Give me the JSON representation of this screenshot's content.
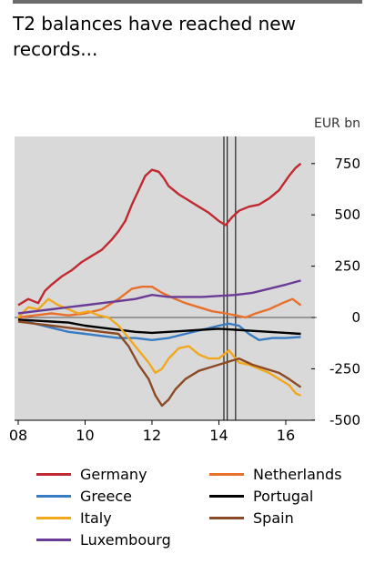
{
  "title": "T2 balances have reached new records...",
  "unit": "EUR bn",
  "chart_data": {
    "type": "line",
    "title": "T2 balances have reached new records...",
    "ylabel": "EUR bn",
    "xlabel": "",
    "xlim": [
      2008,
      2016.6
    ],
    "ylim": [
      -560,
      880
    ],
    "x_ticks": [
      2008,
      2010,
      2012,
      2014,
      2016
    ],
    "x_tick_labels": [
      "08",
      "10",
      "12",
      "14",
      "16"
    ],
    "y_ticks": [
      -500,
      -250,
      0,
      250,
      500,
      750
    ],
    "y_tick_labels": [
      "-500",
      "-250",
      "0",
      "250",
      "500",
      "750"
    ],
    "grid": false,
    "legend_position": "bottom",
    "vertical_markers": [
      2014.15,
      2014.25,
      2014.5
    ],
    "series": [
      {
        "name": "Germany",
        "color": "#c0292f",
        "points": [
          [
            2008.0,
            60
          ],
          [
            2008.3,
            90
          ],
          [
            2008.6,
            70
          ],
          [
            2008.8,
            130
          ],
          [
            2009.0,
            160
          ],
          [
            2009.3,
            200
          ],
          [
            2009.6,
            230
          ],
          [
            2009.9,
            270
          ],
          [
            2010.2,
            300
          ],
          [
            2010.5,
            330
          ],
          [
            2010.8,
            380
          ],
          [
            2011.0,
            420
          ],
          [
            2011.2,
            470
          ],
          [
            2011.4,
            550
          ],
          [
            2011.6,
            620
          ],
          [
            2011.8,
            690
          ],
          [
            2012.0,
            720
          ],
          [
            2012.2,
            710
          ],
          [
            2012.35,
            680
          ],
          [
            2012.5,
            640
          ],
          [
            2012.8,
            600
          ],
          [
            2013.1,
            570
          ],
          [
            2013.4,
            540
          ],
          [
            2013.7,
            510
          ],
          [
            2014.0,
            470
          ],
          [
            2014.2,
            450
          ],
          [
            2014.4,
            490
          ],
          [
            2014.6,
            520
          ],
          [
            2014.9,
            540
          ],
          [
            2015.2,
            550
          ],
          [
            2015.5,
            580
          ],
          [
            2015.8,
            620
          ],
          [
            2016.1,
            690
          ],
          [
            2016.3,
            730
          ],
          [
            2016.45,
            750
          ]
        ]
      },
      {
        "name": "Netherlands",
        "color": "#e8702a",
        "points": [
          [
            2008.0,
            0
          ],
          [
            2008.5,
            10
          ],
          [
            2009.0,
            20
          ],
          [
            2009.5,
            10
          ],
          [
            2010.0,
            20
          ],
          [
            2010.5,
            40
          ],
          [
            2011.0,
            90
          ],
          [
            2011.4,
            140
          ],
          [
            2011.7,
            150
          ],
          [
            2012.0,
            150
          ],
          [
            2012.3,
            120
          ],
          [
            2012.7,
            90
          ],
          [
            2013.0,
            70
          ],
          [
            2013.4,
            50
          ],
          [
            2013.8,
            30
          ],
          [
            2014.2,
            20
          ],
          [
            2014.5,
            10
          ],
          [
            2014.8,
            0
          ],
          [
            2015.1,
            20
          ],
          [
            2015.5,
            40
          ],
          [
            2015.9,
            70
          ],
          [
            2016.2,
            90
          ],
          [
            2016.45,
            60
          ]
        ]
      },
      {
        "name": "Greece",
        "color": "#3a7cc3",
        "points": [
          [
            2008.0,
            -10
          ],
          [
            2008.5,
            -30
          ],
          [
            2009.0,
            -50
          ],
          [
            2009.5,
            -70
          ],
          [
            2010.0,
            -80
          ],
          [
            2010.5,
            -90
          ],
          [
            2011.0,
            -100
          ],
          [
            2011.5,
            -100
          ],
          [
            2012.0,
            -110
          ],
          [
            2012.5,
            -100
          ],
          [
            2013.0,
            -80
          ],
          [
            2013.5,
            -60
          ],
          [
            2014.0,
            -40
          ],
          [
            2014.3,
            -30
          ],
          [
            2014.6,
            -40
          ],
          [
            2014.9,
            -80
          ],
          [
            2015.2,
            -110
          ],
          [
            2015.6,
            -100
          ],
          [
            2016.0,
            -100
          ],
          [
            2016.45,
            -95
          ]
        ]
      },
      {
        "name": "Portugal",
        "color": "#000000",
        "points": [
          [
            2008.0,
            -10
          ],
          [
            2008.5,
            -15
          ],
          [
            2009.0,
            -20
          ],
          [
            2009.5,
            -25
          ],
          [
            2010.0,
            -40
          ],
          [
            2010.5,
            -50
          ],
          [
            2011.0,
            -60
          ],
          [
            2011.5,
            -70
          ],
          [
            2012.0,
            -75
          ],
          [
            2012.5,
            -70
          ],
          [
            2013.0,
            -65
          ],
          [
            2013.5,
            -60
          ],
          [
            2014.0,
            -55
          ],
          [
            2014.5,
            -60
          ],
          [
            2015.0,
            -65
          ],
          [
            2015.5,
            -70
          ],
          [
            2016.0,
            -75
          ],
          [
            2016.45,
            -80
          ]
        ]
      },
      {
        "name": "Italy",
        "color": "#f2a81d",
        "points": [
          [
            2008.0,
            0
          ],
          [
            2008.3,
            50
          ],
          [
            2008.6,
            40
          ],
          [
            2008.9,
            90
          ],
          [
            2009.2,
            60
          ],
          [
            2009.5,
            40
          ],
          [
            2009.8,
            20
          ],
          [
            2010.1,
            30
          ],
          [
            2010.4,
            10
          ],
          [
            2010.7,
            0
          ],
          [
            2011.0,
            -40
          ],
          [
            2011.3,
            -100
          ],
          [
            2011.6,
            -160
          ],
          [
            2011.9,
            -220
          ],
          [
            2012.1,
            -270
          ],
          [
            2012.3,
            -250
          ],
          [
            2012.5,
            -200
          ],
          [
            2012.8,
            -150
          ],
          [
            2013.1,
            -140
          ],
          [
            2013.4,
            -180
          ],
          [
            2013.7,
            -200
          ],
          [
            2014.0,
            -200
          ],
          [
            2014.3,
            -160
          ],
          [
            2014.6,
            -220
          ],
          [
            2014.9,
            -230
          ],
          [
            2015.2,
            -250
          ],
          [
            2015.5,
            -270
          ],
          [
            2015.8,
            -300
          ],
          [
            2016.1,
            -330
          ],
          [
            2016.3,
            -370
          ],
          [
            2016.45,
            -380
          ]
        ]
      },
      {
        "name": "Spain",
        "color": "#8b4a24",
        "points": [
          [
            2008.0,
            -20
          ],
          [
            2008.5,
            -30
          ],
          [
            2009.0,
            -40
          ],
          [
            2009.5,
            -50
          ],
          [
            2010.0,
            -60
          ],
          [
            2010.5,
            -70
          ],
          [
            2011.0,
            -80
          ],
          [
            2011.3,
            -140
          ],
          [
            2011.6,
            -230
          ],
          [
            2011.9,
            -300
          ],
          [
            2012.1,
            -380
          ],
          [
            2012.3,
            -430
          ],
          [
            2012.5,
            -400
          ],
          [
            2012.7,
            -350
          ],
          [
            2013.0,
            -300
          ],
          [
            2013.4,
            -260
          ],
          [
            2013.8,
            -240
          ],
          [
            2014.2,
            -220
          ],
          [
            2014.6,
            -200
          ],
          [
            2015.0,
            -230
          ],
          [
            2015.4,
            -250
          ],
          [
            2015.8,
            -270
          ],
          [
            2016.1,
            -300
          ],
          [
            2016.45,
            -340
          ]
        ]
      },
      {
        "name": "Luxembourg",
        "color": "#6a3c96",
        "points": [
          [
            2008.0,
            20
          ],
          [
            2008.5,
            30
          ],
          [
            2009.0,
            40
          ],
          [
            2009.5,
            50
          ],
          [
            2010.0,
            60
          ],
          [
            2010.5,
            70
          ],
          [
            2011.0,
            80
          ],
          [
            2011.5,
            90
          ],
          [
            2012.0,
            110
          ],
          [
            2012.5,
            100
          ],
          [
            2013.0,
            100
          ],
          [
            2013.5,
            100
          ],
          [
            2014.0,
            105
          ],
          [
            2014.5,
            110
          ],
          [
            2015.0,
            120
          ],
          [
            2015.5,
            140
          ],
          [
            2016.0,
            160
          ],
          [
            2016.45,
            180
          ]
        ]
      }
    ]
  }
}
